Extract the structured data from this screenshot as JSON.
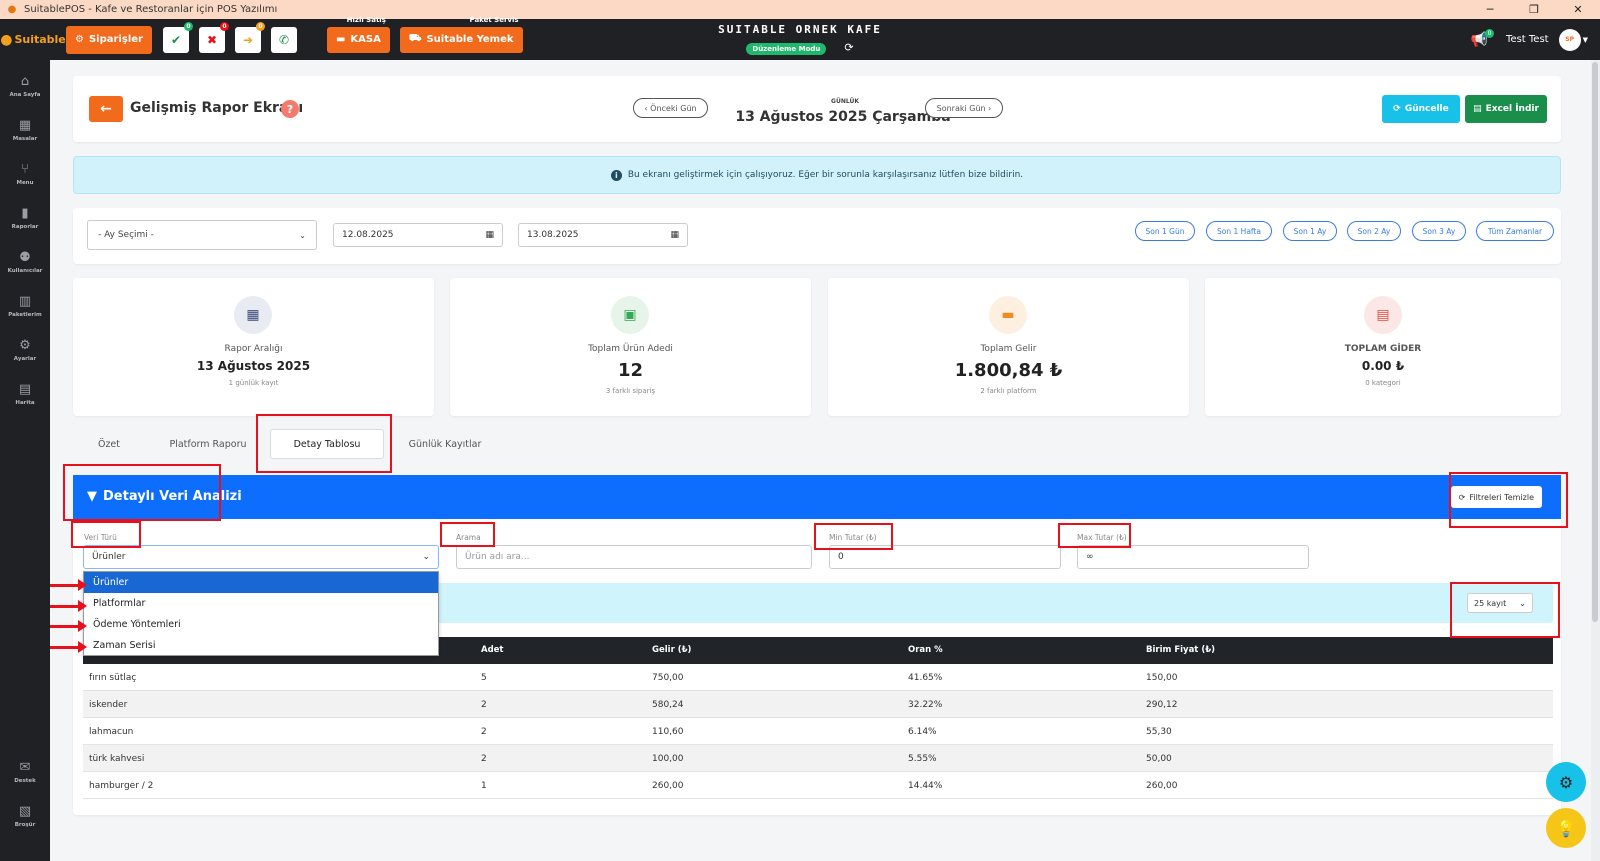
{
  "window": {
    "title": "SuitablePOS - Kafe ve Restoranlar için POS Yazılımı"
  },
  "topnav": {
    "logo": "Suitable",
    "orders_label": "Siparişler",
    "badges": {
      "approve": "0",
      "reject": "0",
      "forward": "0"
    },
    "quick_sale_top": "Hızlı Satış",
    "quick_sale_label": "KASA",
    "package_top": "Paket Servis",
    "package_label": "Suitable Yemek",
    "cafe_name": "SUITABLE ORNEK KAFE",
    "edit_mode": "Düzenleme Modu",
    "notif_count": "0",
    "user_name": "Test Test"
  },
  "sidebar": {
    "items": [
      {
        "label": "Ana Sayfa",
        "icon": "⌂"
      },
      {
        "label": "Masalar",
        "icon": "▦"
      },
      {
        "label": "Menu",
        "icon": "⑂"
      },
      {
        "label": "Raporlar",
        "icon": "▮"
      },
      {
        "label": "Kullanıcılar",
        "icon": "⚉"
      },
      {
        "label": "Paketlerim",
        "icon": "▥"
      },
      {
        "label": "Ayarlar",
        "icon": "⚙"
      },
      {
        "label": "Harita",
        "icon": "▤"
      }
    ],
    "bottom": [
      {
        "label": "Destek",
        "icon": "✉"
      },
      {
        "label": "Broşür",
        "icon": "▧"
      }
    ]
  },
  "header": {
    "title": "Gelişmiş Rapor Ekranı",
    "prev_day": "Önceki Gün",
    "next_day": "Sonraki Gün",
    "date_type": "GÜNLÜK",
    "date": "13 Ağustos 2025 Çarşamba",
    "update_label": "Güncelle",
    "excel_label": "Excel İndir"
  },
  "alert": {
    "text": "Bu ekranı geliştirmek için çalışıyoruz. Eğer bir sorunla karşılaşırsanız lütfen bize bildirin."
  },
  "filters": {
    "month_select": "- Ay Seçimi -",
    "start_date": "12.08.2025",
    "end_date": "13.08.2025",
    "quick": [
      "Son 1 Gün",
      "Son 1 Hafta",
      "Son 1 Ay",
      "Son 2 Ay",
      "Son 3 Ay",
      "Tüm Zamanlar"
    ]
  },
  "stats": [
    {
      "label": "Rapor Aralığı",
      "value": "13 Ağustos 2025",
      "sub": "1 günlük kayıt",
      "icon": "▦",
      "icon_color": "#3d4a7a",
      "bg": "#e8ebf1"
    },
    {
      "label": "Toplam Ürün Adedi",
      "value": "12",
      "sub": "3 farklı sipariş",
      "icon": "▣",
      "icon_color": "#34a853",
      "bg": "#e6f4ea"
    },
    {
      "label": "Toplam Gelir",
      "value": "1.800,84 ₺",
      "sub": "2 farklı platform",
      "icon": "▬",
      "icon_color": "#f08c1e",
      "bg": "#fdf0e0"
    },
    {
      "label": "TOPLAM GİDER",
      "value": "0.00 ₺",
      "sub": "0 kategori",
      "icon": "▤",
      "icon_color": "#e74c3c",
      "bg": "#fbe8e6"
    }
  ],
  "tabs": [
    "Özet",
    "Platform Raporu",
    "Detay Tablosu",
    "Günlük Kayıtlar"
  ],
  "analysis": {
    "title": "Detaylı Veri Analizi",
    "clear_filters": "Filtreleri Temizle",
    "type_label": "Veri Türü",
    "type_value": "Ürünler",
    "search_label": "Arama",
    "search_placeholder": "Ürün adı ara...",
    "min_label": "Min Tutar (₺)",
    "min_value": "0",
    "max_label": "Max Tutar (₺)",
    "max_value": "∞",
    "per_page": "25 kayıt",
    "dropdown_options": [
      "Ürünler",
      "Platformlar",
      "Ödeme Yöntemleri",
      "Zaman Serisi"
    ]
  },
  "table": {
    "columns": [
      "Adet",
      "Gelir (₺)",
      "Oran %",
      "Birim Fiyat (₺)"
    ],
    "rows": [
      [
        "fırın sütlaç",
        "5",
        "750,00",
        "41.65%",
        "150,00"
      ],
      [
        "iskender",
        "2",
        "580,24",
        "32.22%",
        "290,12"
      ],
      [
        "lahmacun",
        "2",
        "110,60",
        "6.14%",
        "55,30"
      ],
      [
        "türk kahvesi",
        "2",
        "100,00",
        "5.55%",
        "50,00"
      ],
      [
        "hamburger / 2",
        "1",
        "260,00",
        "14.44%",
        "260,00"
      ]
    ]
  },
  "colors": {
    "accent": "#f26a1b",
    "primary": "#0d6efd",
    "annotation": "#e8101a"
  }
}
